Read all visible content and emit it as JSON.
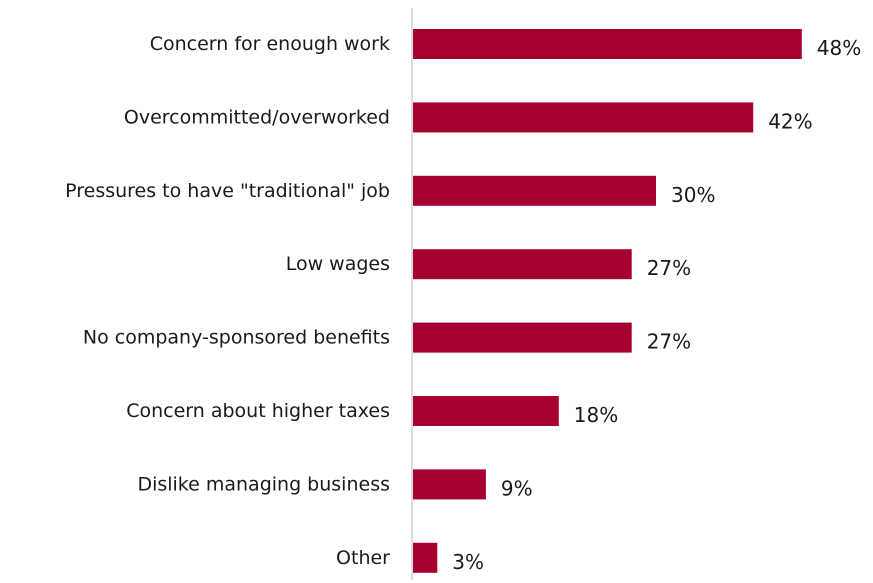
{
  "chart_data": {
    "type": "bar",
    "orientation": "horizontal",
    "categories": [
      "Concern for enough work",
      "Overcommitted/overworked",
      "Pressures to have \"traditional\" job",
      "Low wages",
      "No company-sponsored benefits",
      "Concern about higher taxes",
      "Dislike managing business",
      "Other"
    ],
    "values": [
      48,
      42,
      30,
      27,
      27,
      18,
      9,
      3
    ],
    "value_labels": [
      "48%",
      "42%",
      "30%",
      "27%",
      "27%",
      "18%",
      "9%",
      "3%"
    ],
    "unit": "%",
    "xlim": [
      0,
      60
    ],
    "grid": false,
    "legend": "none",
    "bar_color": "#a50030",
    "axis_color": "#d0d0d0"
  }
}
